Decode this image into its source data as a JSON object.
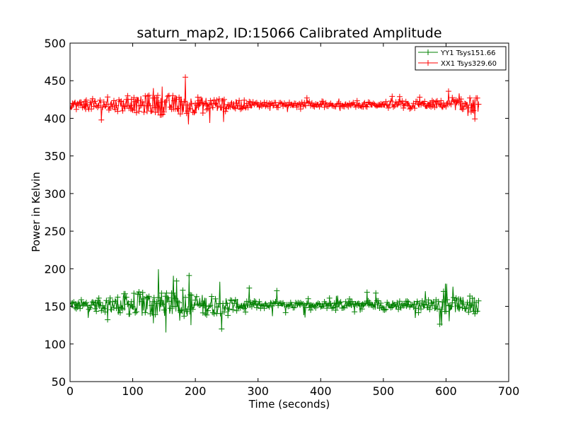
{
  "chart_data": {
    "type": "line",
    "title": "saturn_map2, ID:15066 Calibrated Amplitude",
    "xlabel": "Time (seconds)",
    "ylabel": "Power in Kelvin",
    "xlim": [
      0,
      700
    ],
    "ylim": [
      50,
      500
    ],
    "xticks": [
      0,
      100,
      200,
      300,
      400,
      500,
      600,
      700
    ],
    "yticks": [
      50,
      100,
      150,
      200,
      250,
      300,
      350,
      400,
      450,
      500
    ],
    "xtick_labels": [
      "0",
      "100",
      "200",
      "300",
      "400",
      "500",
      "600",
      "700"
    ],
    "ytick_labels": [
      "50",
      "100",
      "150",
      "200",
      "250",
      "300",
      "350",
      "400",
      "450",
      "500"
    ],
    "grid": false,
    "legend_position": "top-right",
    "marker": "+",
    "series": [
      {
        "name": "YY1 Tsys151.66",
        "color": "#008000",
        "x_range": [
          0,
          652
        ],
        "baseline": 152,
        "profile": [
          {
            "x": 0,
            "noise": 6,
            "spike": 30
          },
          {
            "x": 60,
            "noise": 10,
            "spike": 40
          },
          {
            "x": 100,
            "noise": 18,
            "spike": 55
          },
          {
            "x": 160,
            "noise": 16,
            "spike": 45
          },
          {
            "x": 200,
            "noise": 15,
            "spike": 50
          },
          {
            "x": 240,
            "noise": 12,
            "spike": 45
          },
          {
            "x": 280,
            "noise": 6,
            "spike": 25
          },
          {
            "x": 350,
            "noise": 4,
            "spike": 18
          },
          {
            "x": 450,
            "noise": 5,
            "spike": 15
          },
          {
            "x": 500,
            "noise": 7,
            "spike": 25
          },
          {
            "x": 560,
            "noise": 6,
            "spike": 20
          },
          {
            "x": 610,
            "noise": 10,
            "spike": 35
          },
          {
            "x": 652,
            "noise": 14,
            "spike": 60
          }
        ]
      },
      {
        "name": "XX1 Tsys329.60",
        "color": "#ff0000",
        "x_range": [
          0,
          652
        ],
        "baseline": 418,
        "profile": [
          {
            "x": 0,
            "noise": 6,
            "spike": 25
          },
          {
            "x": 60,
            "noise": 8,
            "spike": 20
          },
          {
            "x": 100,
            "noise": 10,
            "spike": 25
          },
          {
            "x": 130,
            "noise": 14,
            "spike": 30
          },
          {
            "x": 200,
            "noise": 12,
            "spike": 40
          },
          {
            "x": 240,
            "noise": 10,
            "spike": 25
          },
          {
            "x": 300,
            "noise": 4,
            "spike": 12
          },
          {
            "x": 450,
            "noise": 3,
            "spike": 8
          },
          {
            "x": 500,
            "noise": 5,
            "spike": 14
          },
          {
            "x": 600,
            "noise": 6,
            "spike": 18
          },
          {
            "x": 640,
            "noise": 10,
            "spike": 35
          },
          {
            "x": 652,
            "noise": 10,
            "spike": 35
          }
        ]
      }
    ]
  }
}
